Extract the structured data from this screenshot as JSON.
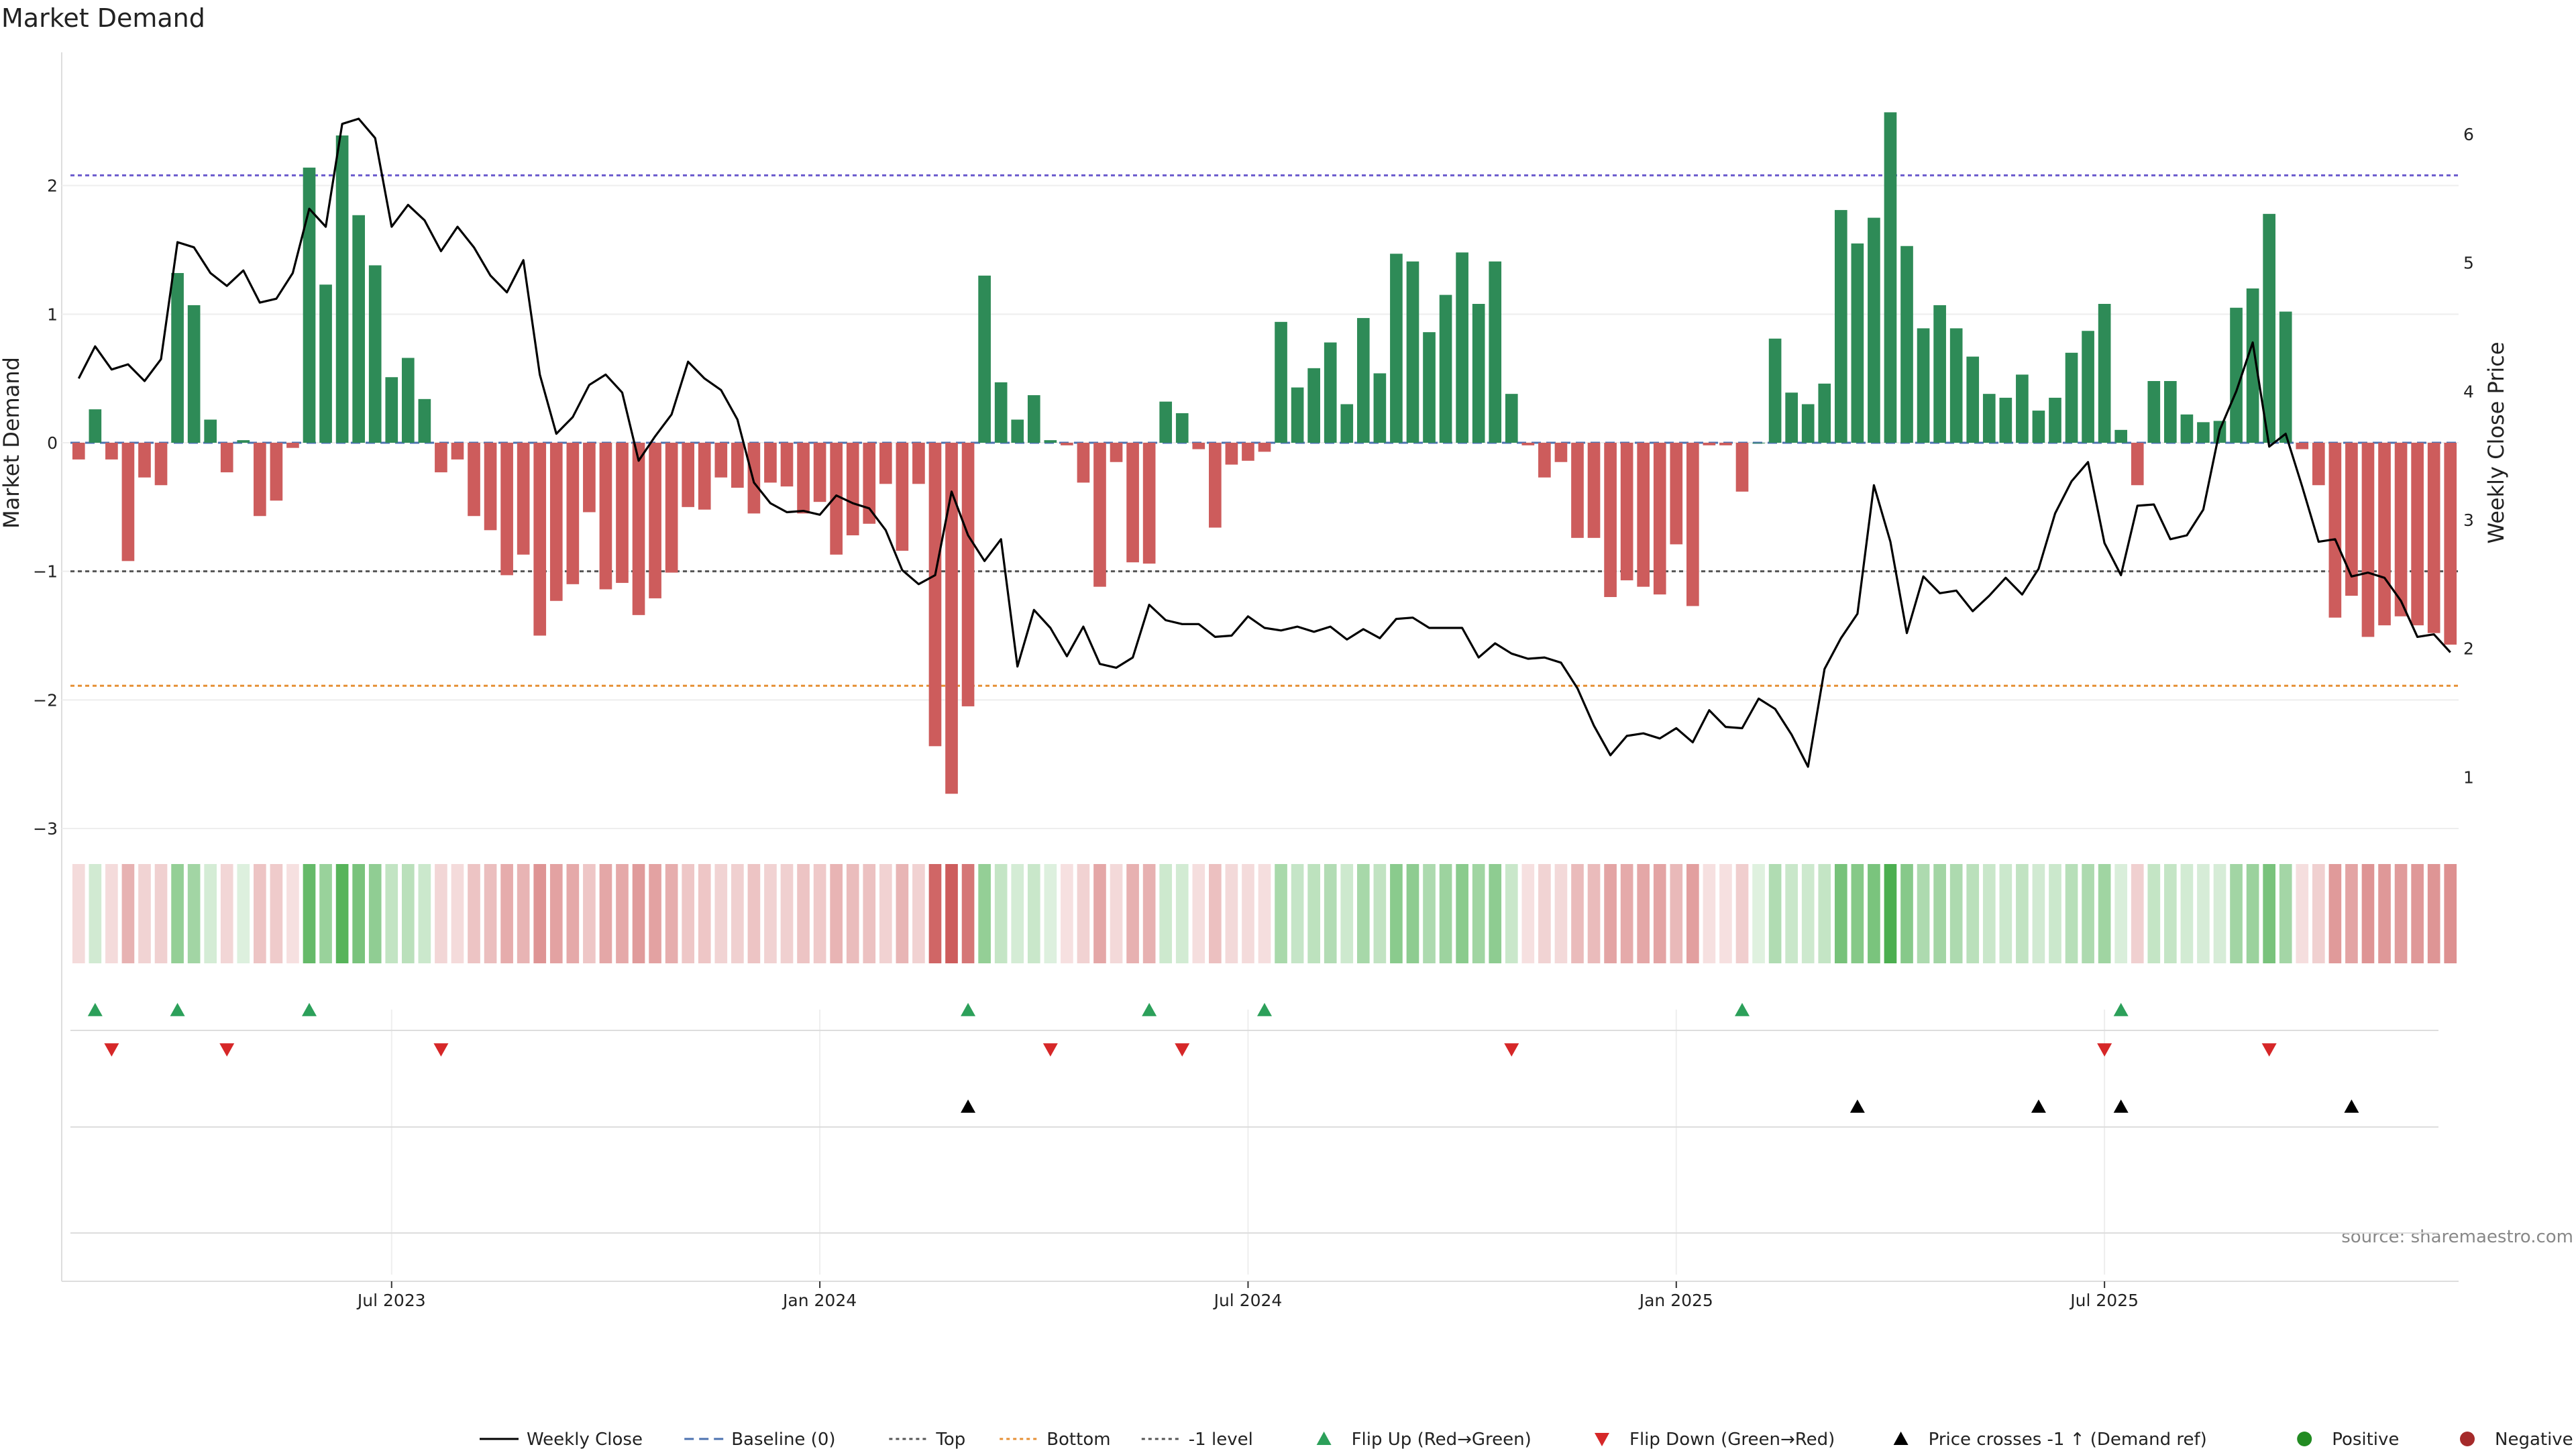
{
  "chart_data": {
    "type": "bar",
    "title": "Market Demand",
    "ylabel_left": "Market Demand",
    "ylabel_right": "Weekly Close Price",
    "source": "source: sharemaestro.com",
    "x_ticks": [
      "Jul 2023",
      "Jan 2024",
      "Jul 2024",
      "Jan 2025",
      "Jul 2025"
    ],
    "x_tick_index": [
      19.5,
      45.5,
      71.5,
      97.5,
      123.5
    ],
    "ylim_left": [
      -3.0,
      3.0
    ],
    "ylim_right": [
      0.6,
      6.6
    ],
    "y_ticks_left": [
      2,
      1,
      0,
      -1,
      -2,
      -3
    ],
    "y_ticks_left_labels": [
      "2",
      "1",
      "0",
      "−1",
      "−2",
      "−3"
    ],
    "y_ticks_right": [
      6,
      5,
      4,
      3,
      2,
      1
    ],
    "levels": {
      "top": 2.08,
      "bottom": -1.89,
      "minus_one": -1.0
    },
    "colors": {
      "positive": "#2e8b57",
      "negative": "#cd5c5c",
      "price": "#000000",
      "top": "#6a5acd",
      "bottom": "#e69035",
      "minus_one": "#555555",
      "flip_up": "#2ca05a",
      "flip_down": "#d62728",
      "cross": "#000000",
      "legend_positive": "#228b22",
      "legend_negative": "#a52a2a"
    },
    "demand": [
      -0.13,
      0.26,
      -0.13,
      -0.92,
      -0.27,
      -0.33,
      1.32,
      1.07,
      0.18,
      -0.23,
      0.02,
      -0.57,
      -0.45,
      -0.04,
      2.14,
      1.23,
      2.39,
      1.77,
      1.38,
      0.51,
      0.66,
      0.34,
      -0.23,
      -0.13,
      -0.57,
      -0.68,
      -1.03,
      -0.87,
      -1.5,
      -1.23,
      -1.1,
      -0.54,
      -1.14,
      -1.09,
      -1.34,
      -1.21,
      -1.01,
      -0.5,
      -0.52,
      -0.27,
      -0.35,
      -0.55,
      -0.31,
      -0.34,
      -0.55,
      -0.46,
      -0.87,
      -0.72,
      -0.63,
      -0.32,
      -0.84,
      -0.32,
      -2.36,
      -2.73,
      -2.05,
      1.3,
      0.47,
      0.18,
      0.37,
      0.02,
      -0.02,
      -0.31,
      -1.12,
      -0.15,
      -0.93,
      -0.94,
      0.32,
      0.23,
      -0.05,
      -0.66,
      -0.17,
      -0.14,
      -0.07,
      0.94,
      0.43,
      0.58,
      0.78,
      0.3,
      0.97,
      0.54,
      1.47,
      1.41,
      0.86,
      1.15,
      1.48,
      1.08,
      1.41,
      0.38,
      -0.02,
      -0.27,
      -0.15,
      -0.74,
      -0.74,
      -1.2,
      -1.07,
      -1.12,
      -1.18,
      -0.79,
      -1.27,
      -0.02,
      -0.02,
      -0.38,
      0.0,
      0.81,
      0.39,
      0.3,
      0.46,
      1.81,
      1.55,
      1.75,
      2.57,
      1.53,
      0.89,
      1.07,
      0.89,
      0.67,
      0.38,
      0.35,
      0.53,
      0.25,
      0.35,
      0.7,
      0.87,
      1.08,
      0.1,
      -0.33,
      0.48,
      0.48,
      0.22,
      0.16,
      0.17,
      1.05,
      1.2,
      1.78,
      1.02,
      -0.05,
      -0.33,
      -1.36,
      -1.19,
      -1.51,
      -1.42,
      -1.35,
      -1.42,
      -1.48,
      -1.57
    ],
    "price": [
      4.1,
      4.35,
      4.17,
      4.21,
      4.08,
      4.25,
      5.16,
      5.12,
      4.92,
      4.82,
      4.94,
      4.69,
      4.72,
      4.92,
      5.42,
      5.28,
      6.08,
      6.12,
      5.97,
      5.28,
      5.45,
      5.33,
      5.09,
      5.28,
      5.12,
      4.9,
      4.77,
      5.02,
      4.13,
      3.67,
      3.8,
      4.05,
      4.13,
      3.99,
      3.46,
      3.65,
      3.82,
      4.23,
      4.1,
      4.01,
      3.78,
      3.29,
      3.13,
      3.06,
      3.07,
      3.04,
      3.19,
      3.13,
      3.09,
      2.92,
      2.61,
      2.5,
      2.57,
      3.22,
      2.88,
      2.68,
      2.85,
      1.86,
      2.3,
      2.16,
      1.94,
      2.17,
      1.88,
      1.85,
      1.93,
      2.34,
      2.22,
      2.19,
      2.19,
      2.09,
      2.1,
      2.25,
      2.16,
      2.14,
      2.17,
      2.13,
      2.17,
      2.07,
      2.15,
      2.08,
      2.23,
      2.24,
      2.16,
      2.16,
      2.16,
      1.93,
      2.04,
      1.96,
      1.92,
      1.93,
      1.89,
      1.69,
      1.4,
      1.17,
      1.32,
      1.34,
      1.3,
      1.38,
      1.27,
      1.52,
      1.39,
      1.38,
      1.61,
      1.53,
      1.33,
      1.08,
      1.84,
      2.08,
      2.27,
      3.27,
      2.83,
      2.12,
      2.56,
      2.43,
      2.45,
      2.29,
      2.41,
      2.55,
      2.42,
      2.62,
      3.05,
      3.3,
      3.45,
      2.82,
      2.57,
      3.11,
      3.12,
      2.85,
      2.88,
      3.08,
      3.7,
      4.0,
      4.38,
      3.57,
      3.67,
      3.26,
      2.83,
      2.85,
      2.56,
      2.59,
      2.55,
      2.37,
      2.09,
      2.11,
      1.97
    ],
    "flip_up": [
      1,
      6,
      14,
      54,
      65,
      72,
      101,
      124
    ],
    "flip_down": [
      2,
      9,
      22,
      59,
      67,
      87,
      123,
      133
    ],
    "price_crosses": [
      54,
      108,
      119,
      124,
      138
    ],
    "legend": [
      {
        "label": "Weekly Close",
        "kind": "line"
      },
      {
        "label": "Baseline (0)",
        "kind": "dashed"
      },
      {
        "label": "Top",
        "kind": "dotted"
      },
      {
        "label": "Bottom",
        "kind": "dotted-orange"
      },
      {
        "label": "-1 level",
        "kind": "dotted-gray"
      },
      {
        "label": "Flip Up (Red→Green)",
        "kind": "tri-up-green"
      },
      {
        "label": "Flip Down (Green→Red)",
        "kind": "tri-down-red"
      },
      {
        "label": "Price crosses -1 ↑ (Demand ref)",
        "kind": "tri-up-black"
      },
      {
        "label": "Positive",
        "kind": "dot-green"
      },
      {
        "label": "Negative",
        "kind": "dot-red"
      }
    ]
  }
}
